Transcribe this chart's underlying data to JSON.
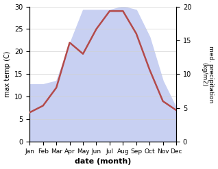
{
  "months": [
    "Jan",
    "Feb",
    "Mar",
    "Apr",
    "May",
    "Jun",
    "Jul",
    "Aug",
    "Sep",
    "Oct",
    "Nov",
    "Dec"
  ],
  "max_temp": [
    6.5,
    8.0,
    12.0,
    22.0,
    19.5,
    25.0,
    29.0,
    29.0,
    24.0,
    16.0,
    9.0,
    7.0
  ],
  "precipitation": [
    8.5,
    8.5,
    9.0,
    14.5,
    19.5,
    19.5,
    19.5,
    20.0,
    19.5,
    15.5,
    9.0,
    5.0
  ],
  "temp_color": "#b34a4a",
  "precip_fill_color": "#c8d0f2",
  "ylabel_left": "max temp (C)",
  "ylabel_right": "med. precipitation\n(kg/m2)",
  "xlabel": "date (month)",
  "ylim_left": [
    0,
    30
  ],
  "ylim_right": [
    0,
    20
  ],
  "background_color": "#ffffff"
}
